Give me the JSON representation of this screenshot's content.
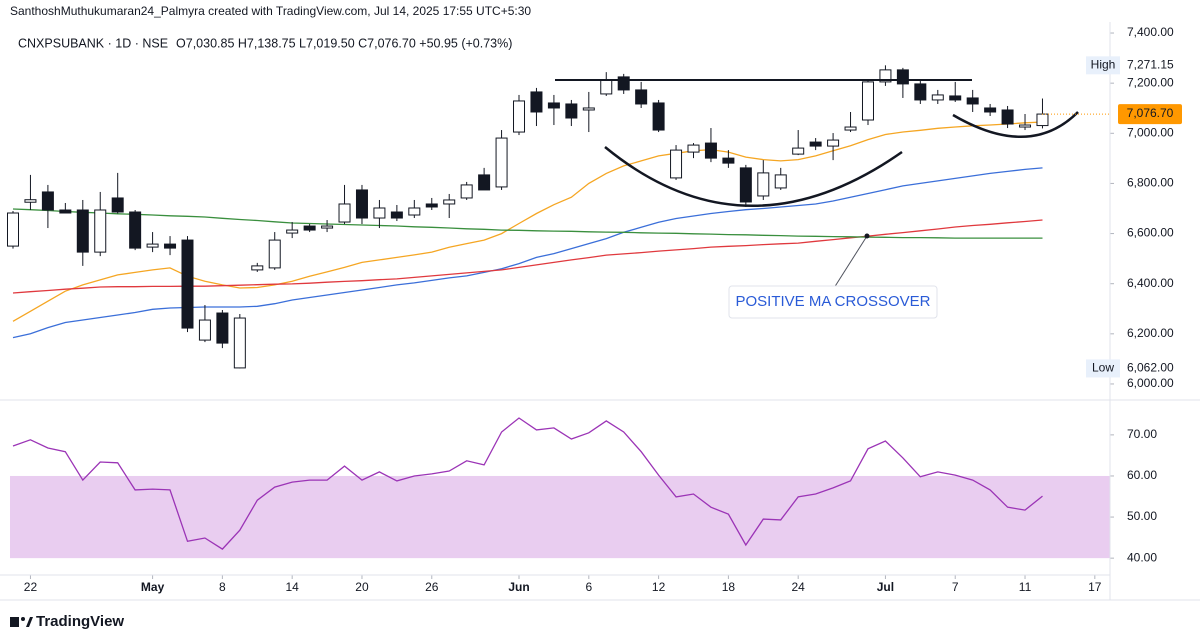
{
  "attribution": "SanthoshMuthukumaran24_Palmyra created with TradingView.com, Jul 14, 2025 17:55 UTC+5:30",
  "footer": "TradingView",
  "chart_data": [
    {
      "type": "candlestick",
      "title": "CNXPSUBANK · 1D · NSE",
      "subtitle": "O7,030.85 H7,138.75 L7,019.50 C7,076.70 +50.95 (+0.73%)",
      "up_color": "#ffffff",
      "down_color": "#131722",
      "open": [
        6550,
        6725,
        6766,
        6694,
        6694,
        6526,
        6742,
        6686,
        6546,
        6558,
        6574,
        6175,
        6283,
        6064,
        6455,
        6463,
        6602,
        6630,
        6622,
        6646,
        6774,
        6662,
        6686,
        6674,
        6718,
        6718,
        6742,
        6834,
        6786,
        7005,
        7165,
        7121,
        7117,
        7093,
        7157,
        7225,
        7173,
        7121,
        6822,
        6925,
        6961,
        6901,
        6862,
        6750,
        6782,
        6917,
        6965,
        6949,
        7013,
        7053,
        7205,
        7253,
        7197,
        7133,
        7149,
        7141,
        7101,
        7093,
        7025,
        7030.85
      ],
      "high": [
        6690,
        6834,
        6794,
        6722,
        6734,
        6766,
        6842,
        6694,
        6606,
        6590,
        6590,
        6315,
        6295,
        6279,
        6483,
        6606,
        6646,
        6638,
        6654,
        6794,
        6794,
        6734,
        6714,
        6734,
        6742,
        6758,
        6806,
        6862,
        7013,
        7153,
        7181,
        7153,
        7133,
        7165,
        7244,
        7237,
        7205,
        7133,
        6953,
        6961,
        7021,
        6933,
        6874,
        6893,
        6862,
        7013,
        6981,
        7001,
        7085,
        7213,
        7271.15,
        7261,
        7213,
        7173,
        7205,
        7173,
        7117,
        7109,
        7077,
        7138.75
      ],
      "low": [
        6540,
        6694,
        6622,
        6680,
        6471,
        6510,
        6680,
        6534,
        6526,
        6514,
        6207,
        6167,
        6143,
        6062,
        6447,
        6455,
        6582,
        6606,
        6606,
        6638,
        6638,
        6622,
        6650,
        6662,
        6694,
        6662,
        6734,
        6774,
        6774,
        6993,
        7029,
        7033,
        7029,
        7005,
        7149,
        7157,
        7101,
        7005,
        6814,
        6901,
        6885,
        6862,
        6706,
        6734,
        6774,
        6913,
        6933,
        6893,
        7005,
        7033,
        7189,
        7141,
        7117,
        7117,
        7125,
        7085,
        7069,
        7021,
        7013,
        7019.5
      ],
      "close": [
        6682,
        6735,
        6694,
        6682,
        6526,
        6694,
        6686,
        6542,
        6558,
        6542,
        6223,
        6255,
        6163,
        6263,
        6471,
        6574,
        6614,
        6614,
        6630,
        6718,
        6662,
        6702,
        6662,
        6702,
        6706,
        6734,
        6794,
        6774,
        6981,
        7129,
        7085,
        7101,
        7061,
        7101,
        7213,
        7173,
        7117,
        7013,
        6933,
        6953,
        6901,
        6881,
        6726,
        6842,
        6834,
        6941,
        6949,
        6973,
        7025,
        7205,
        7253,
        7197,
        7133,
        7153,
        7133,
        7117,
        7085,
        7037,
        7033,
        7076.7
      ],
      "series": [
        {
          "color": "#f5a623",
          "values": [
            6250,
            6290,
            6330,
            6370,
            6395,
            6415,
            6435,
            6445,
            6455,
            6463,
            6430,
            6410,
            6395,
            6383,
            6385,
            6395,
            6410,
            6430,
            6447,
            6465,
            6485,
            6495,
            6505,
            6515,
            6526,
            6545,
            6560,
            6574,
            6600,
            6640,
            6680,
            6715,
            6745,
            6800,
            6840,
            6870,
            6890,
            6910,
            6920,
            6930,
            6935,
            6925,
            6905,
            6895,
            6890,
            6895,
            6910,
            6930,
            6950,
            6975,
            6995,
            7005,
            7012,
            7020,
            7025,
            7030,
            7033,
            7037,
            7042,
            7045
          ]
        },
        {
          "color": "#3b6fd9",
          "values": [
            6185,
            6200,
            6225,
            6245,
            6255,
            6265,
            6275,
            6285,
            6298,
            6303,
            6305,
            6307,
            6307,
            6307,
            6310,
            6320,
            6335,
            6345,
            6355,
            6365,
            6375,
            6385,
            6395,
            6403,
            6413,
            6423,
            6431,
            6445,
            6460,
            6480,
            6505,
            6520,
            6540,
            6560,
            6580,
            6605,
            6625,
            6645,
            6660,
            6670,
            6680,
            6688,
            6695,
            6700,
            6706,
            6712,
            6718,
            6730,
            6745,
            6760,
            6775,
            6790,
            6800,
            6810,
            6820,
            6830,
            6840,
            6848,
            6856,
            6862
          ]
        },
        {
          "color": "#e0393e",
          "values": [
            6363,
            6368,
            6373,
            6378,
            6382,
            6387,
            6388,
            6388,
            6389,
            6389,
            6390,
            6390,
            6392,
            6394,
            6396,
            6398,
            6399,
            6402,
            6406,
            6409,
            6412,
            6416,
            6419,
            6425,
            6431,
            6437,
            6443,
            6449,
            6455,
            6465,
            6475,
            6485,
            6495,
            6504,
            6514,
            6519,
            6524,
            6530,
            6535,
            6540,
            6546,
            6549,
            6552,
            6556,
            6559,
            6562,
            6569,
            6576,
            6583,
            6590,
            6597,
            6604,
            6611,
            6618,
            6626,
            6632,
            6637,
            6643,
            6648,
            6654
          ]
        },
        {
          "color": "#3a8f3e",
          "values": [
            6698,
            6695,
            6692,
            6688,
            6685,
            6682,
            6679,
            6677,
            6674,
            6671,
            6669,
            6666,
            6661,
            6656,
            6652,
            6647,
            6642,
            6640,
            6638,
            6636,
            6634,
            6632,
            6630,
            6627,
            6625,
            6622,
            6619,
            6617,
            6614,
            6613,
            6611,
            6610,
            6609,
            6607,
            6606,
            6605,
            6603,
            6602,
            6601,
            6599,
            6598,
            6596,
            6595,
            6593,
            6592,
            6590,
            6589,
            6588,
            6587,
            6586,
            6585,
            6584,
            6584,
            6583,
            6582,
            6582,
            6582,
            6582,
            6582,
            6582
          ]
        }
      ],
      "ylim": [
        5936,
        7444
      ],
      "yticks": [
        {
          "value": 6000,
          "label": "6,000.00"
        },
        {
          "value": 6200,
          "label": "6,200.00"
        },
        {
          "value": 6400,
          "label": "6,400.00"
        },
        {
          "value": 6600,
          "label": "6,600.00"
        },
        {
          "value": 6800,
          "label": "6,800.00"
        },
        {
          "value": 7000,
          "label": "7,000.00"
        },
        {
          "value": 7200,
          "label": "7,200.00"
        },
        {
          "value": 7400,
          "label": "7,400.00"
        }
      ],
      "xlim": [
        -0.745,
        62.87
      ],
      "xticks": [
        {
          "value": 1,
          "label": "22"
        },
        {
          "value": 8,
          "label": "May"
        },
        {
          "value": 12,
          "label": "8"
        },
        {
          "value": 16,
          "label": "14"
        },
        {
          "value": 20,
          "label": "20"
        },
        {
          "value": 24,
          "label": "26"
        },
        {
          "value": 29,
          "label": "Jun"
        },
        {
          "value": 33,
          "label": "6"
        },
        {
          "value": 37,
          "label": "12"
        },
        {
          "value": 41,
          "label": "18"
        },
        {
          "value": 45,
          "label": "24"
        },
        {
          "value": 50,
          "label": "Jul"
        },
        {
          "value": 54,
          "label": "7"
        },
        {
          "value": 58,
          "label": "11"
        },
        {
          "value": 62,
          "label": "17"
        }
      ],
      "markers": [
        {
          "label": "High",
          "value": 7271.15,
          "value_label": "7,271.15"
        },
        {
          "label": "Low",
          "value": 6062,
          "value_label": "6,062.00"
        }
      ],
      "last_price": {
        "value": 7076.7,
        "value_label": "7,076.70",
        "color": "#ff9800"
      },
      "annotations": [
        "POSITIVE MA CROSSOVER"
      ]
    },
    {
      "type": "line",
      "series": [
        {
          "color": "#9b34b6",
          "values": [
            67.3,
            68.8,
            66.8,
            65.9,
            59,
            63.4,
            63.2,
            56.6,
            56.8,
            56.6,
            44.1,
            44.9,
            42.2,
            46.8,
            54.1,
            57.3,
            58.5,
            59,
            59,
            62.4,
            59,
            61,
            58.8,
            60,
            60.5,
            61.2,
            63.7,
            62.7,
            70.7,
            74.1,
            71.2,
            71.7,
            69,
            70.5,
            73.4,
            70.7,
            65.9,
            60.2,
            54.9,
            55.6,
            52.4,
            50.7,
            43.2,
            49.5,
            49.3,
            54.9,
            55.6,
            57.1,
            58.8,
            66.6,
            68.5,
            64.4,
            59.8,
            61,
            60.2,
            59,
            56.6,
            52.4,
            51.7,
            55.1
          ]
        }
      ],
      "band": [
        40,
        60
      ],
      "band_color": "#e9cdf0",
      "ylim": [
        35.9,
        78
      ],
      "yticks": [
        {
          "value": 40,
          "label": "40.00"
        },
        {
          "value": 50,
          "label": "50.00"
        },
        {
          "value": 60,
          "label": "60.00"
        },
        {
          "value": 70,
          "label": "70.00"
        }
      ]
    }
  ]
}
